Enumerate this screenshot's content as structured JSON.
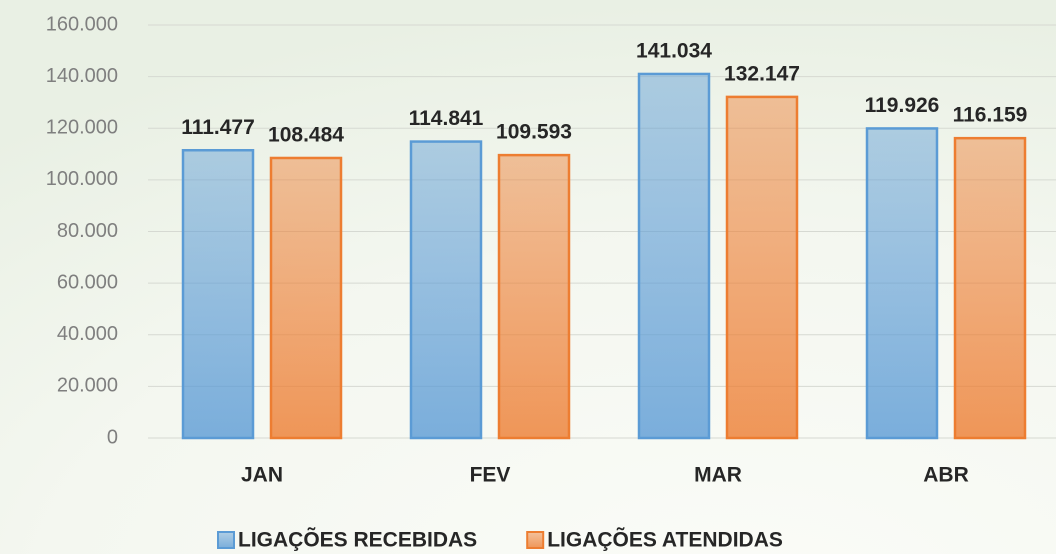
{
  "chart_data": {
    "type": "bar",
    "categories": [
      "JAN",
      "FEV",
      "MAR",
      "ABR"
    ],
    "series": [
      {
        "name": "LIGAÇÕES RECEBIDAS",
        "color": "#5b9bd5",
        "values": [
          111477,
          114841,
          141034,
          119926
        ],
        "value_labels": [
          "111.477",
          "114.841",
          "141.034",
          "119.926"
        ]
      },
      {
        "name": "LIGAÇÕES ATENDIDAS",
        "color": "#ed7d31",
        "values": [
          108484,
          109593,
          132147,
          116159
        ],
        "value_labels": [
          "108.484",
          "109.593",
          "132.147",
          "116.159"
        ]
      }
    ],
    "ylim": [
      0,
      160000
    ],
    "yticks": [
      0,
      {
        "value": 20000,
        "label": "20.000"
      },
      {
        "value": 40000,
        "label": "40.000"
      },
      {
        "value": 60000,
        "label": "60.000"
      },
      {
        "value": 80000,
        "label": "80.000"
      },
      {
        "value": 100000,
        "label": "100.000"
      },
      {
        "value": 120000,
        "label": "120.000"
      },
      {
        "value": 140000,
        "label": "140.000"
      },
      {
        "value": 160000,
        "label": "160.000"
      }
    ],
    "grid": true,
    "legend": "bottom"
  }
}
